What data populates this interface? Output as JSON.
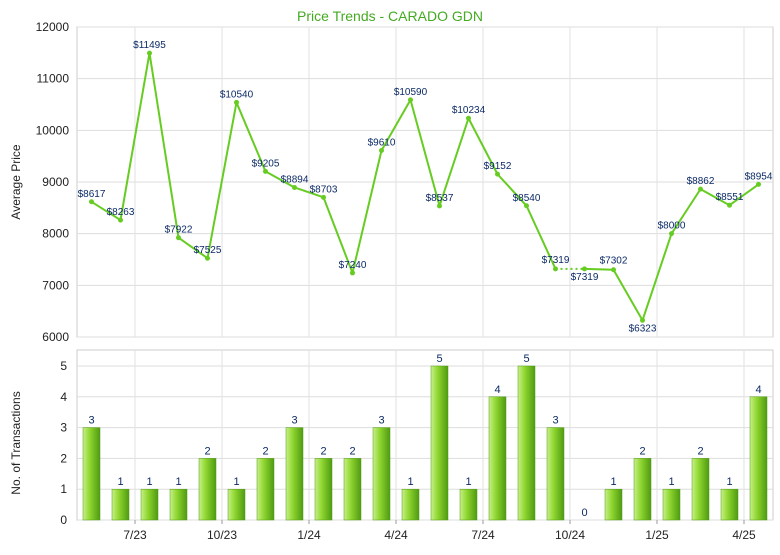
{
  "chart_data": [
    {
      "type": "line",
      "title": "Price Trends - CARADO GDN",
      "ylabel": "Average Price",
      "ylim": [
        6000,
        12000
      ],
      "yticks": [
        6000,
        7000,
        8000,
        9000,
        10000,
        11000,
        12000
      ],
      "grid": true,
      "values": [
        8617,
        8263,
        11495,
        7922,
        7525,
        10540,
        9205,
        8894,
        8703,
        7240,
        9610,
        10590,
        8537,
        10234,
        9152,
        8540,
        7319,
        7319,
        7302,
        6323,
        8000,
        8862,
        8551,
        8954
      ],
      "labels": [
        "$8617",
        "$8263",
        "$11495",
        "$7922",
        "$7525",
        "$10540",
        "$9205",
        "$8894",
        "$8703",
        "$7240",
        "$9610",
        "$10590",
        "$8537",
        "$10234",
        "$9152",
        "$8540",
        "$7319",
        "$7319",
        "$7302",
        "$6323",
        "$8000",
        "$8862",
        "$8551",
        "$8954"
      ],
      "gap_after_index": 16,
      "colors": {
        "line": "#66cc22",
        "dot": "#66cc22",
        "label": "#0b2a66",
        "title": "#44aa22"
      }
    },
    {
      "type": "bar",
      "ylabel": "No. of Transactions",
      "ylim": [
        0,
        5
      ],
      "yticks": [
        0,
        1,
        2,
        3,
        4,
        5
      ],
      "grid": true,
      "values": [
        3,
        1,
        1,
        1,
        2,
        1,
        2,
        3,
        2,
        2,
        3,
        1,
        5,
        1,
        4,
        5,
        3,
        0,
        1,
        2,
        1,
        2,
        1,
        4
      ],
      "xticks": [
        {
          "after_index": 1,
          "label": "7/23"
        },
        {
          "after_index": 4,
          "label": "10/23"
        },
        {
          "after_index": 7,
          "label": "1/24"
        },
        {
          "after_index": 10,
          "label": "4/24"
        },
        {
          "after_index": 13,
          "label": "7/24"
        },
        {
          "after_index": 16,
          "label": "10/24"
        },
        {
          "after_index": 19,
          "label": "1/25"
        },
        {
          "after_index": 22,
          "label": "4/25"
        }
      ],
      "colors": {
        "bar_light": "#c8f08a",
        "bar_mid": "#8fd62f",
        "bar_dark": "#4f9a12",
        "label": "#0b2a66"
      }
    }
  ]
}
